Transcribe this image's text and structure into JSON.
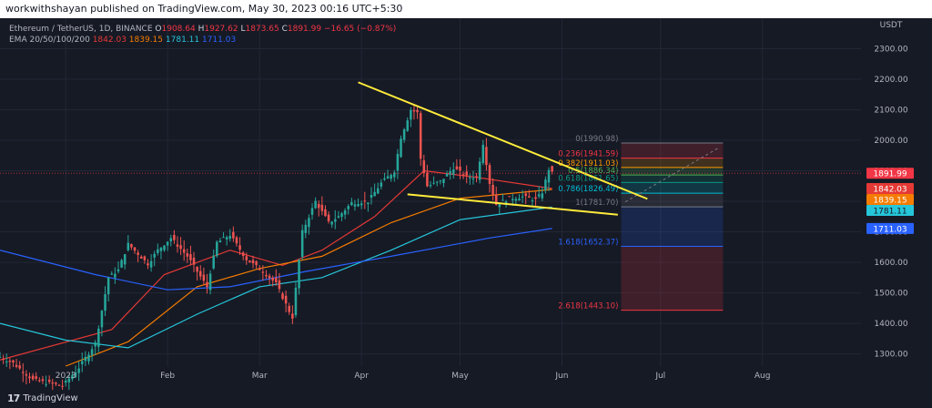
{
  "header": {
    "published_by": "workwithshayan published on TradingView.com, May 30, 2023 00:16 UTC+5:30"
  },
  "legend": {
    "symbol": "Ethereum / TetherUS, 1D, BINANCE",
    "open_label": "O",
    "open": "1908.64",
    "high_label": "H",
    "high": "1927.62",
    "low_label": "L",
    "low": "1873.65",
    "close_label": "C",
    "close": "1891.99",
    "change": "−16.65 (−0.87%)",
    "ema_label": "EMA 20/50/100/200",
    "ema20": "1842.03",
    "ema50": "1839.15",
    "ema100": "1781.11",
    "ema200": "1711.03"
  },
  "footer": {
    "brand": "TradingView",
    "logo_mark": "17"
  },
  "colors": {
    "background": "#161a25",
    "up": "#26a69a",
    "down": "#ef5350",
    "ema20": "#e53935",
    "ema50": "#f57c00",
    "ema100": "#26c6da",
    "ema200": "#2962ff",
    "trendline": "#ffeb3b",
    "price_line": "#f23645"
  },
  "chart_data": {
    "type": "candlestick",
    "title": "Ethereum / TetherUS, 1D, BINANCE",
    "currency": "USDT",
    "y_axis_position": "right",
    "y_ticks": [
      1300,
      1400,
      1500,
      1600,
      1700,
      1800,
      1900,
      2000,
      2100,
      2200,
      2300
    ],
    "y_tick_labels": [
      "1300.00",
      "1400.00",
      "1500.00",
      "1600.00",
      "1700.00",
      "1800.00",
      "1900.00",
      "2000.00",
      "2100.00",
      "2200.00",
      "2300.00"
    ],
    "ylim": [
      1260,
      2400
    ],
    "xlim": [
      "2022-12-12",
      "2023-08-31"
    ],
    "x_ticks": [
      {
        "date": "2023-01-01",
        "label": "2023"
      },
      {
        "date": "2023-02-01",
        "label": "Feb"
      },
      {
        "date": "2023-03-01",
        "label": "Mar"
      },
      {
        "date": "2023-04-01",
        "label": "Apr"
      },
      {
        "date": "2023-05-01",
        "label": "May"
      },
      {
        "date": "2023-06-01",
        "label": "Jun"
      },
      {
        "date": "2023-07-01",
        "label": "Jul"
      },
      {
        "date": "2023-08-01",
        "label": "Aug"
      }
    ],
    "candle_anchors": [
      {
        "date": "2022-12-12",
        "close": 1290
      },
      {
        "date": "2022-12-16",
        "close": 1270
      },
      {
        "date": "2022-12-22",
        "close": 1215
      },
      {
        "date": "2022-12-31",
        "close": 1195
      },
      {
        "date": "2023-01-05",
        "close": 1255
      },
      {
        "date": "2023-01-10",
        "close": 1335
      },
      {
        "date": "2023-01-14",
        "close": 1550
      },
      {
        "date": "2023-01-17",
        "close": 1575
      },
      {
        "date": "2023-01-20",
        "close": 1660
      },
      {
        "date": "2023-01-26",
        "close": 1595
      },
      {
        "date": "2023-01-29",
        "close": 1640
      },
      {
        "date": "2023-02-02",
        "close": 1680
      },
      {
        "date": "2023-02-07",
        "close": 1620
      },
      {
        "date": "2023-02-13",
        "close": 1520
      },
      {
        "date": "2023-02-16",
        "close": 1665
      },
      {
        "date": "2023-02-20",
        "close": 1690
      },
      {
        "date": "2023-02-25",
        "close": 1610
      },
      {
        "date": "2023-03-02",
        "close": 1570
      },
      {
        "date": "2023-03-06",
        "close": 1530
      },
      {
        "date": "2023-03-10",
        "close": 1440
      },
      {
        "date": "2023-03-11",
        "close": 1420
      },
      {
        "date": "2023-03-14",
        "close": 1700
      },
      {
        "date": "2023-03-18",
        "close": 1800
      },
      {
        "date": "2023-03-22",
        "close": 1730
      },
      {
        "date": "2023-03-25",
        "close": 1750
      },
      {
        "date": "2023-03-29",
        "close": 1795
      },
      {
        "date": "2023-04-03",
        "close": 1800
      },
      {
        "date": "2023-04-07",
        "close": 1860
      },
      {
        "date": "2023-04-11",
        "close": 1900
      },
      {
        "date": "2023-04-13",
        "close": 2010
      },
      {
        "date": "2023-04-16",
        "close": 2100
      },
      {
        "date": "2023-04-18",
        "close": 2090
      },
      {
        "date": "2023-04-19",
        "close": 1940
      },
      {
        "date": "2023-04-21",
        "close": 1850
      },
      {
        "date": "2023-04-25",
        "close": 1865
      },
      {
        "date": "2023-04-29",
        "close": 1910
      },
      {
        "date": "2023-05-03",
        "close": 1880
      },
      {
        "date": "2023-05-06",
        "close": 1880
      },
      {
        "date": "2023-05-08",
        "close": 1990
      },
      {
        "date": "2023-05-10",
        "close": 1860
      },
      {
        "date": "2023-05-12",
        "close": 1790
      },
      {
        "date": "2023-05-16",
        "close": 1810
      },
      {
        "date": "2023-05-20",
        "close": 1815
      },
      {
        "date": "2023-05-24",
        "close": 1805
      },
      {
        "date": "2023-05-26",
        "close": 1830
      },
      {
        "date": "2023-05-28",
        "close": 1905
      },
      {
        "date": "2023-05-29",
        "close": 1892
      }
    ],
    "series": [
      {
        "name": "EMA 20",
        "points": [
          {
            "date": "2022-12-12",
            "value": 1280
          },
          {
            "date": "2023-01-15",
            "value": 1380
          },
          {
            "date": "2023-01-31",
            "value": 1560
          },
          {
            "date": "2023-02-20",
            "value": 1640
          },
          {
            "date": "2023-03-08",
            "value": 1590
          },
          {
            "date": "2023-03-20",
            "value": 1640
          },
          {
            "date": "2023-04-05",
            "value": 1750
          },
          {
            "date": "2023-04-20",
            "value": 1900
          },
          {
            "date": "2023-05-05",
            "value": 1880
          },
          {
            "date": "2023-05-29",
            "value": 1842
          }
        ]
      },
      {
        "name": "EMA 50",
        "points": [
          {
            "date": "2023-01-01",
            "value": 1260
          },
          {
            "date": "2023-01-20",
            "value": 1340
          },
          {
            "date": "2023-02-10",
            "value": 1520
          },
          {
            "date": "2023-03-01",
            "value": 1580
          },
          {
            "date": "2023-03-20",
            "value": 1620
          },
          {
            "date": "2023-04-10",
            "value": 1730
          },
          {
            "date": "2023-05-01",
            "value": 1810
          },
          {
            "date": "2023-05-29",
            "value": 1839
          }
        ]
      },
      {
        "name": "EMA 100",
        "points": [
          {
            "date": "2022-12-12",
            "value": 1400
          },
          {
            "date": "2023-01-01",
            "value": 1345
          },
          {
            "date": "2023-01-20",
            "value": 1320
          },
          {
            "date": "2023-02-10",
            "value": 1430
          },
          {
            "date": "2023-03-01",
            "value": 1520
          },
          {
            "date": "2023-03-20",
            "value": 1550
          },
          {
            "date": "2023-04-10",
            "value": 1640
          },
          {
            "date": "2023-05-01",
            "value": 1740
          },
          {
            "date": "2023-05-29",
            "value": 1781
          }
        ]
      },
      {
        "name": "EMA 200",
        "points": [
          {
            "date": "2022-12-12",
            "value": 1640
          },
          {
            "date": "2023-01-10",
            "value": 1560
          },
          {
            "date": "2023-02-01",
            "value": 1510
          },
          {
            "date": "2023-02-20",
            "value": 1520
          },
          {
            "date": "2023-03-15",
            "value": 1570
          },
          {
            "date": "2023-04-10",
            "value": 1620
          },
          {
            "date": "2023-05-10",
            "value": 1680
          },
          {
            "date": "2023-05-29",
            "value": 1711
          }
        ]
      }
    ],
    "trendlines": [
      {
        "from": {
          "date": "2023-03-31",
          "value": 2190
        },
        "to": {
          "date": "2023-06-27",
          "value": 1808
        }
      },
      {
        "from": {
          "date": "2023-04-15",
          "value": 1823
        },
        "to": {
          "date": "2023-06-18",
          "value": 1756
        }
      }
    ],
    "fibonacci": {
      "from_date": "2023-06-19",
      "to_date": "2023-07-20",
      "levels": [
        {
          "ratio": "0",
          "price": 1990.98,
          "label": "0(1990.98)",
          "color": "#787b86"
        },
        {
          "ratio": "0.236",
          "price": 1941.59,
          "label": "0.236(1941.59)",
          "color": "#f23645"
        },
        {
          "ratio": "0.382",
          "price": 1911.03,
          "label": "0.382(1911.03)",
          "color": "#ff9800"
        },
        {
          "ratio": "0.5",
          "price": 1886.34,
          "label": "0.5(1886.34)",
          "color": "#4caf50"
        },
        {
          "ratio": "0.618",
          "price": 1861.65,
          "label": "0.618(1861.65)",
          "color": "#089981"
        },
        {
          "ratio": "0.786",
          "price": 1826.49,
          "label": "0.786(1826.49)",
          "color": "#00bcd4"
        },
        {
          "ratio": "1",
          "price": 1781.7,
          "label": "1(1781.70)",
          "color": "#787b86"
        },
        {
          "ratio": "1.618",
          "price": 1652.37,
          "label": "1.618(1652.37)",
          "color": "#2962ff"
        },
        {
          "ratio": "2.618",
          "price": 1443.1,
          "label": "2.618(1443.10)",
          "color": "#f23645"
        }
      ]
    },
    "price_labels": [
      {
        "name": "last-price",
        "value": 1891.99,
        "text": "1891.99",
        "bg": "#f23645",
        "fg": "#ffffff"
      },
      {
        "name": "ema20",
        "value": 1842.03,
        "text": "1842.03",
        "bg": "#e53935",
        "fg": "#ffffff"
      },
      {
        "name": "ema50",
        "value": 1839.15,
        "text": "1839.15",
        "bg": "#f57c00",
        "fg": "#ffffff"
      },
      {
        "name": "ema100",
        "value": 1781.11,
        "text": "1781.11",
        "bg": "#26c6da",
        "fg": "#131722"
      },
      {
        "name": "ema200",
        "value": 1711.03,
        "text": "1711.03",
        "bg": "#2962ff",
        "fg": "#ffffff"
      }
    ]
  }
}
